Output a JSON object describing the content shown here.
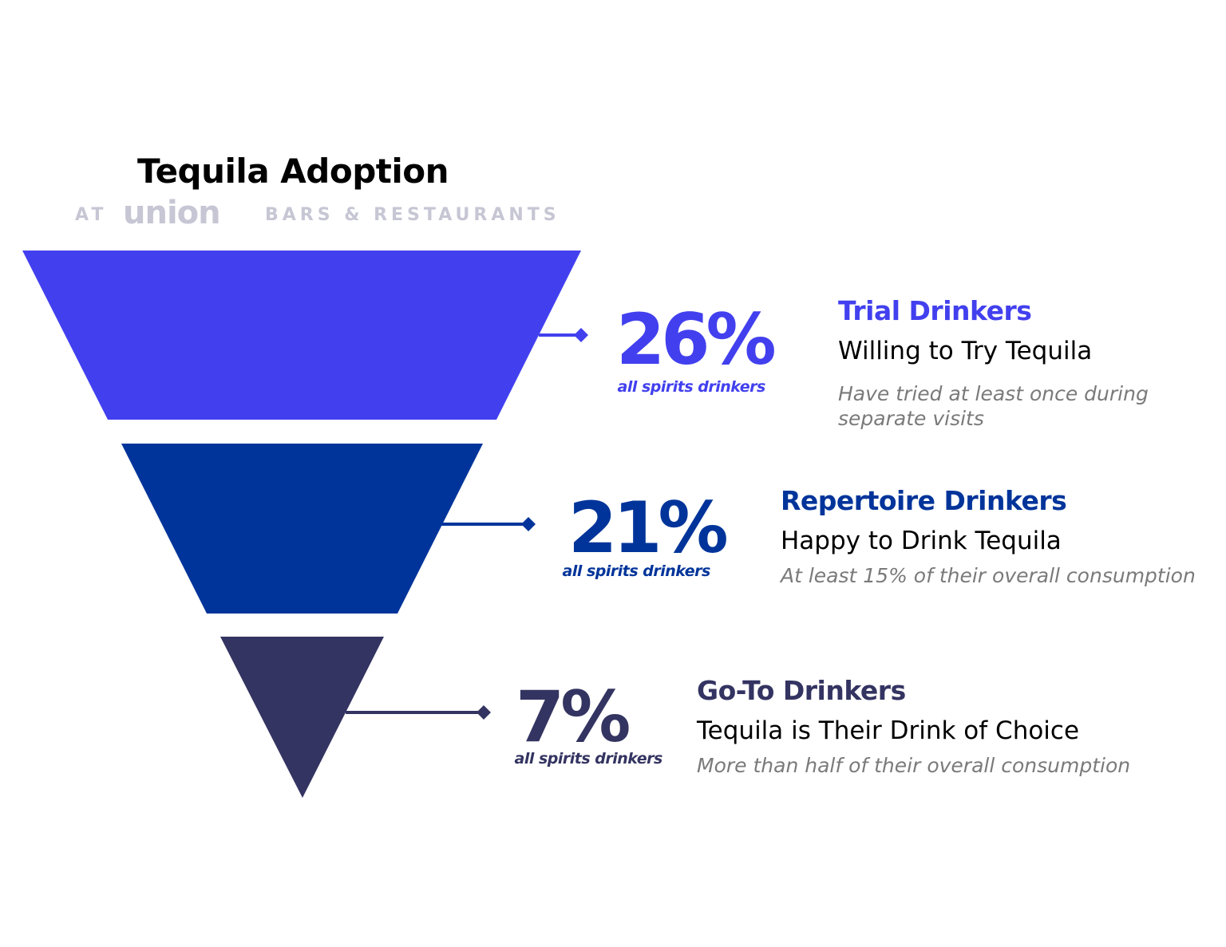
{
  "chart_data": {
    "type": "funnel",
    "title": "Tequila Adoption",
    "subtitle_prefix": "AT",
    "subtitle_brand": "union",
    "subtitle_suffix": "BARS & RESTAURANTS",
    "categories": [
      "Trial Drinkers",
      "Repertoire Drinkers",
      "Go-To Drinkers"
    ],
    "values": [
      26,
      21,
      7
    ],
    "value_labels": [
      "26%",
      "21%",
      "7%"
    ],
    "value_caption": "all spirits drinkers",
    "descriptions": [
      "Willing to Try Tequila",
      "Happy to Drink Tequila",
      "Tequila is Their Drink of Choice"
    ],
    "notes": [
      "Have tried at least once during separate visits",
      "At least 15% of their overall consumption",
      "More than half of their overall consumption"
    ],
    "colors": [
      "#4240ee",
      "#00349a",
      "#343462"
    ]
  }
}
